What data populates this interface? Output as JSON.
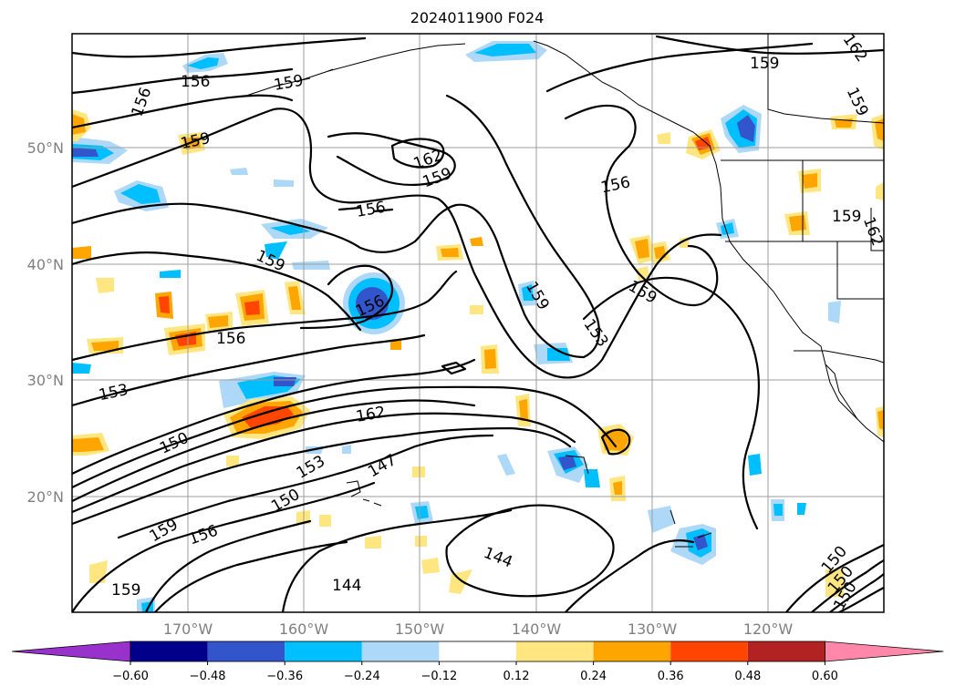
{
  "title": "2024011900 F024",
  "lat_labels": [
    "50°N",
    "40°N",
    "30°N",
    "20°N"
  ],
  "lon_labels": [
    "170°W",
    "160°W",
    "150°W",
    "140°W",
    "130°W",
    "120°W"
  ],
  "contour_labels": [
    "156",
    "156",
    "159",
    "159",
    "162",
    "159",
    "156",
    "156",
    "159",
    "156",
    "156",
    "153",
    "150",
    "153",
    "150",
    "147",
    "159",
    "156",
    "144",
    "144",
    "159",
    "162",
    "153",
    "159",
    "162",
    "159",
    "159",
    "159",
    "150",
    "150",
    "150",
    "159",
    "162"
  ],
  "colorbar": {
    "ticks": [
      "−0.60",
      "−0.48",
      "−0.36",
      "−0.24",
      "−0.12",
      "0.12",
      "0.24",
      "0.36",
      "0.48",
      "0.60"
    ],
    "colors": [
      "#9932cc",
      "#00008b",
      "#3355cc",
      "#00bfff",
      "#add8f7",
      "#ffffff",
      "#ffe680",
      "#ffa500",
      "#ff4500",
      "#b22222",
      "#ff88aa"
    ],
    "extend": "both"
  },
  "legend_placement": "bottom"
}
